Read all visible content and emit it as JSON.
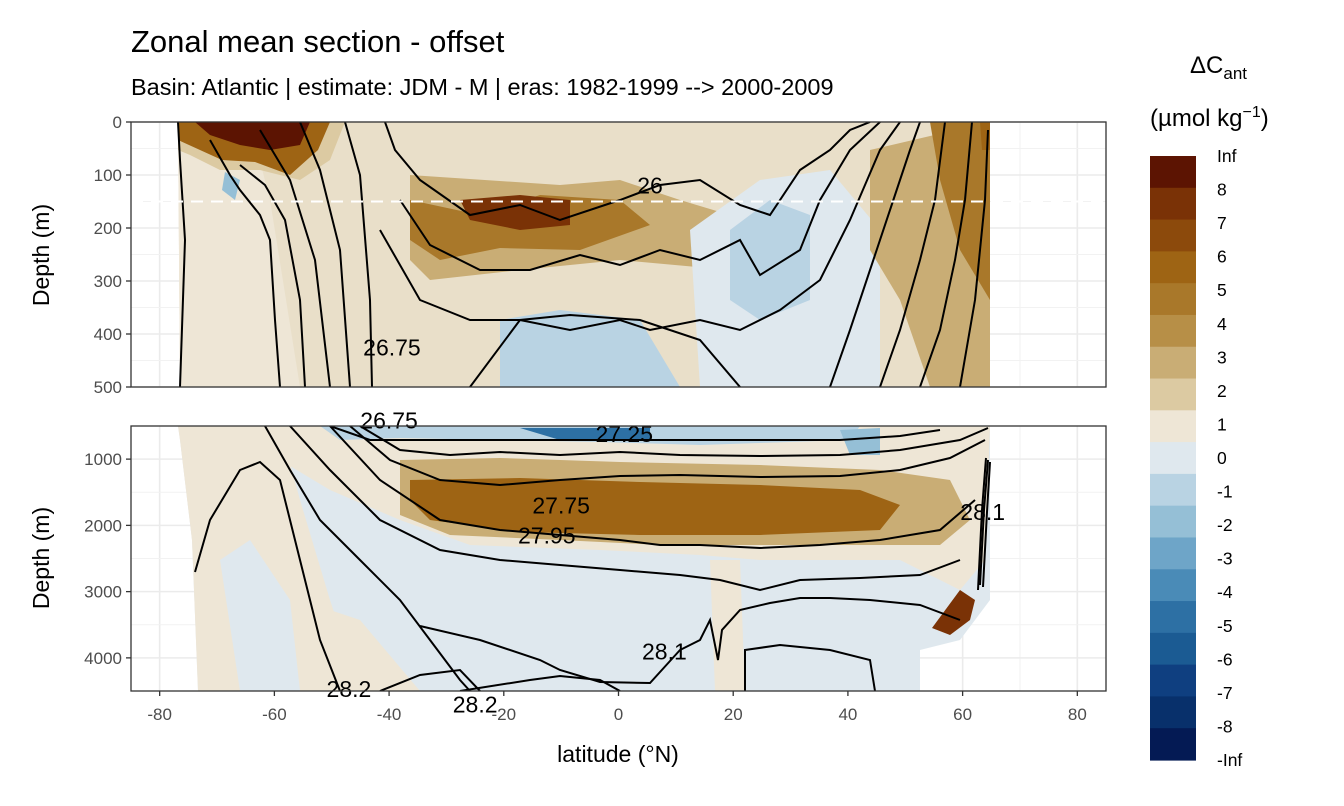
{
  "chart_data": {
    "type": "heatmap",
    "title": "Zonal mean section - offset",
    "subtitle": "Basin: Atlantic | estimate: JDM - M | eras: 1982-1999 --> 2000-2009",
    "xlabel": "latitude (°N)",
    "ylabel": "Depth (m)",
    "xlim": [
      -85,
      85
    ],
    "x_ticks": [
      -80,
      -60,
      -40,
      -20,
      0,
      20,
      40,
      60,
      80
    ],
    "x_tick_labels": [
      "-80",
      "-60",
      "-40",
      "-20",
      "0",
      "20",
      "40",
      "60",
      "80"
    ],
    "panels": [
      {
        "name": "upper",
        "ylim": [
          0,
          500
        ],
        "y_ticks": [
          0,
          100,
          200,
          300,
          400,
          500
        ],
        "y_tick_labels": [
          "0",
          "100",
          "200",
          "300",
          "400",
          "500"
        ],
        "reference_depth": 150,
        "contour_labels": [
          {
            "text": "26",
            "lat": 5.5,
            "depth": 120
          },
          {
            "text": "26.75",
            "lat": -39.5,
            "depth": 425
          }
        ]
      },
      {
        "name": "lower",
        "ylim": [
          4500,
          500
        ],
        "y_ticks": [
          1000,
          2000,
          3000,
          4000
        ],
        "y_tick_labels": [
          "1000",
          "2000",
          "3000",
          "4000"
        ],
        "contour_labels": [
          {
            "text": "26.75",
            "lat": -40,
            "depth": 420
          },
          {
            "text": "27.25",
            "lat": 1,
            "depth": 620
          },
          {
            "text": "27.75",
            "lat": -10,
            "depth": 1700
          },
          {
            "text": "27.95",
            "lat": -12.5,
            "depth": 2150
          },
          {
            "text": "28.1",
            "lat": 8,
            "depth": 3900
          },
          {
            "text": "28.2",
            "lat": -47,
            "depth": 4470
          },
          {
            "text": "28.2",
            "lat": -25,
            "depth": 4700
          },
          {
            "text": "28.1",
            "lat": 63.5,
            "depth": 1800
          }
        ]
      }
    ],
    "legend": {
      "title": "ΔC",
      "title_sub": "ant",
      "unit_prefix": "(µmol kg",
      "unit_sup": "−1",
      "unit_suffix": ")",
      "levels": [
        "Inf",
        "8",
        "7",
        "6",
        "5",
        "4",
        "3",
        "2",
        "1",
        "0",
        "-1",
        "-2",
        "-3",
        "-4",
        "-5",
        "-6",
        "-7",
        "-8",
        "-Inf"
      ],
      "colors": [
        "#5c1402",
        "#7a3206",
        "#8c4a0c",
        "#9e6414",
        "#a9782a",
        "#b78f47",
        "#c9ad75",
        "#dccaa2",
        "#eee6d6",
        "#dfe8ee",
        "#b9d3e3",
        "#95bfd6",
        "#6ea5c8",
        "#4a8bb7",
        "#2d70a4",
        "#1b5b93",
        "#0f3f80",
        "#08306b",
        "#041a54"
      ]
    }
  }
}
